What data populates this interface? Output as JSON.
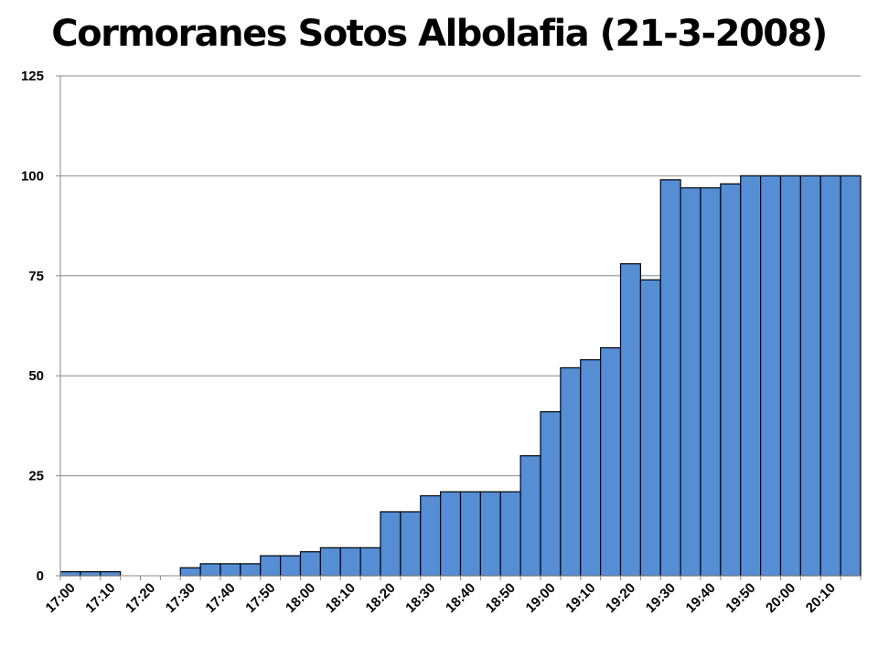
{
  "chart_data": {
    "type": "bar",
    "title": "Cormoranes Sotos Albolafia (21-3-2008)",
    "xlabel": "",
    "ylabel": "",
    "ylim": [
      0,
      125
    ],
    "yticks": [
      0,
      25,
      50,
      75,
      100,
      125
    ],
    "grid": true,
    "bar_color": "#558ED5",
    "bar_edge_color": "#000000",
    "categories": [
      "17:00",
      "17:05",
      "17:10",
      "17:15",
      "17:20",
      "17:25",
      "17:30",
      "17:35",
      "17:40",
      "17:45",
      "17:50",
      "17:55",
      "18:00",
      "18:05",
      "18:10",
      "18:15",
      "18:20",
      "18:25",
      "18:30",
      "18:35",
      "18:40",
      "18:45",
      "18:50",
      "18:55",
      "19:00",
      "19:05",
      "19:10",
      "19:15",
      "19:20",
      "19:25",
      "19:30",
      "19:35",
      "19:40",
      "19:45",
      "19:50",
      "19:55",
      "20:00",
      "20:05",
      "20:10",
      "20:15"
    ],
    "xtick_labels": [
      "17:00",
      "17:10",
      "17:20",
      "17:30",
      "17:40",
      "17:50",
      "18:00",
      "18:10",
      "18:20",
      "18:30",
      "18:40",
      "18:50",
      "19:00",
      "19:10",
      "19:20",
      "19:30",
      "19:40",
      "19:50",
      "20:00",
      "20:10"
    ],
    "values": [
      1,
      1,
      1,
      0,
      0,
      0,
      2,
      3,
      3,
      3,
      5,
      5,
      6,
      7,
      7,
      7,
      16,
      16,
      20,
      21,
      21,
      21,
      21,
      30,
      41,
      52,
      54,
      57,
      78,
      74,
      99,
      97,
      97,
      98,
      100,
      100,
      100,
      100,
      100,
      100
    ]
  }
}
